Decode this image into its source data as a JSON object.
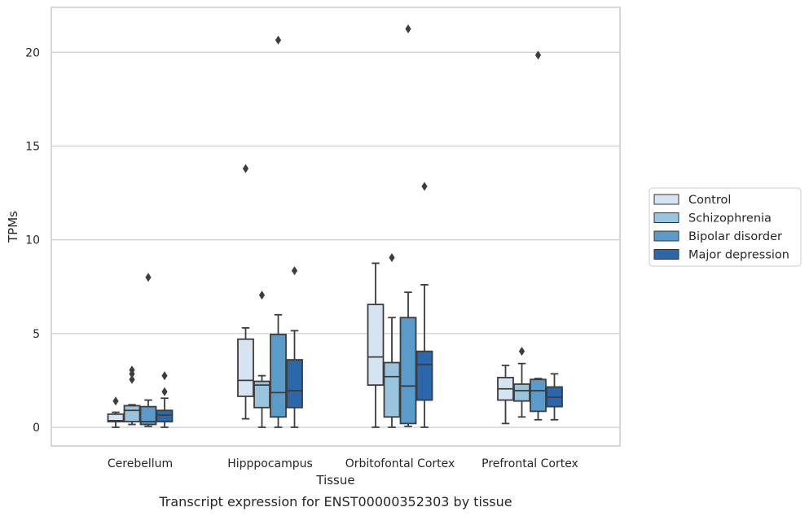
{
  "chart_data": {
    "type": "box",
    "title": "",
    "caption": "Transcript expression for ENST00000352303 by tissue",
    "xlabel": "Tissue",
    "ylabel": "TPMs",
    "ylim": [
      -1,
      22.4
    ],
    "yticks": [
      0,
      5,
      10,
      15,
      20
    ],
    "grid": "horizontal",
    "legend_position": "right",
    "categories": [
      "Cerebellum",
      "Hipppocampus",
      "Orbitofontal Cortex",
      "Prefrontal Cortex"
    ],
    "series": [
      {
        "name": "Control",
        "color": "#d6e4f1",
        "boxes": [
          {
            "whislo": 0.0,
            "q1": 0.3,
            "med": 0.35,
            "q3": 0.7,
            "whishi": 0.8,
            "fliers": [
              1.4
            ]
          },
          {
            "whislo": 0.45,
            "q1": 1.65,
            "med": 2.5,
            "q3": 4.7,
            "whishi": 5.3,
            "fliers": [
              13.8
            ]
          },
          {
            "whislo": 0.0,
            "q1": 2.25,
            "med": 3.75,
            "q3": 6.55,
            "whishi": 8.75,
            "fliers": []
          },
          {
            "whislo": 0.2,
            "q1": 1.45,
            "med": 2.05,
            "q3": 2.65,
            "whishi": 3.3,
            "fliers": []
          }
        ]
      },
      {
        "name": "Schizophrenia",
        "color": "#9ac4dd",
        "boxes": [
          {
            "whislo": 0.15,
            "q1": 0.3,
            "med": 0.9,
            "q3": 1.15,
            "whishi": 1.2,
            "fliers": [
              2.55,
              2.85,
              3.05
            ]
          },
          {
            "whislo": 0.0,
            "q1": 1.05,
            "med": 2.25,
            "q3": 2.45,
            "whishi": 2.75,
            "fliers": [
              7.05
            ]
          },
          {
            "whislo": 0.0,
            "q1": 0.55,
            "med": 2.7,
            "q3": 3.45,
            "whishi": 5.85,
            "fliers": [
              9.05
            ]
          },
          {
            "whislo": 0.55,
            "q1": 1.4,
            "med": 1.95,
            "q3": 2.3,
            "whishi": 3.4,
            "fliers": [
              4.05
            ]
          }
        ]
      },
      {
        "name": "Bipolar disorder",
        "color": "#5b9bc9",
        "boxes": [
          {
            "whislo": 0.05,
            "q1": 0.15,
            "med": 0.3,
            "q3": 1.1,
            "whishi": 1.45,
            "fliers": [
              8.0
            ]
          },
          {
            "whislo": 0.0,
            "q1": 0.55,
            "med": 1.85,
            "q3": 4.95,
            "whishi": 6.0,
            "fliers": [
              20.65
            ]
          },
          {
            "whislo": 0.05,
            "q1": 0.2,
            "med": 2.2,
            "q3": 5.85,
            "whishi": 7.2,
            "fliers": [
              21.25
            ]
          },
          {
            "whislo": 0.4,
            "q1": 0.85,
            "med": 1.95,
            "q3": 2.55,
            "whishi": 2.6,
            "fliers": [
              19.85
            ]
          }
        ]
      },
      {
        "name": "Major depression",
        "color": "#2a68ab",
        "boxes": [
          {
            "whislo": 0.0,
            "q1": 0.3,
            "med": 0.65,
            "q3": 0.9,
            "whishi": 1.55,
            "fliers": [
              1.9,
              2.75
            ]
          },
          {
            "whislo": 0.0,
            "q1": 1.05,
            "med": 1.95,
            "q3": 3.6,
            "whishi": 5.15,
            "fliers": [
              8.35
            ]
          },
          {
            "whislo": 0.0,
            "q1": 1.45,
            "med": 3.35,
            "q3": 4.05,
            "whishi": 7.6,
            "fliers": [
              12.85
            ]
          },
          {
            "whislo": 0.4,
            "q1": 1.1,
            "med": 1.6,
            "q3": 2.15,
            "whishi": 2.85,
            "fliers": []
          }
        ]
      }
    ]
  }
}
